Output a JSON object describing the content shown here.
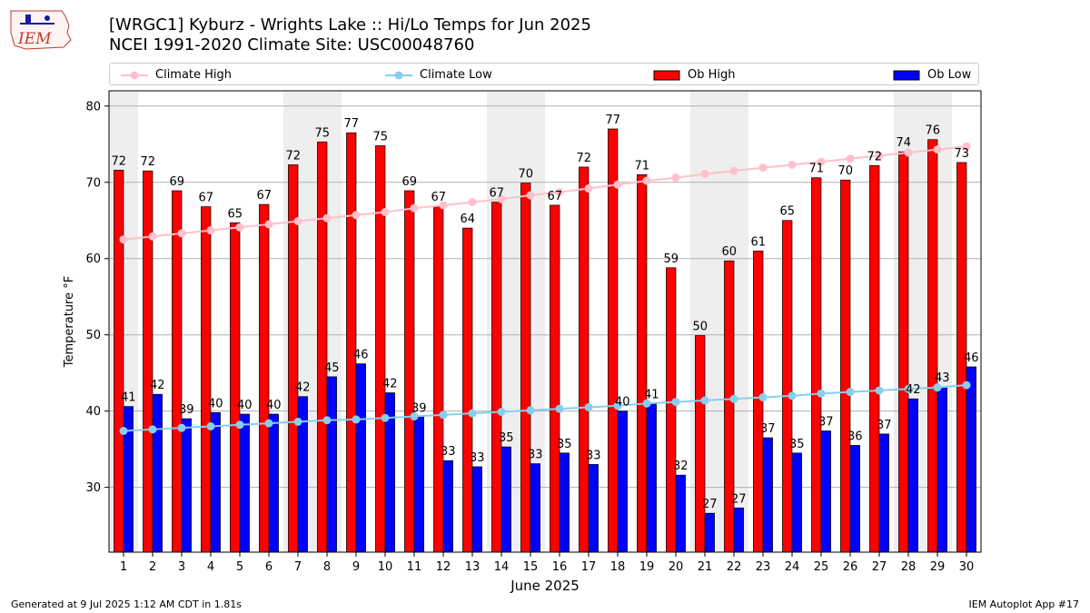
{
  "header": {
    "title": "[WRGC1] Kyburz - Wrights Lake :: Hi/Lo Temps for Jun 2025",
    "subtitle": "NCEI 1991-2020 Climate Site: USC00048760",
    "logo_text": "IEM"
  },
  "legend": {
    "climate_high": "Climate High",
    "climate_low": "Climate Low",
    "ob_high": "Ob High",
    "ob_low": "Ob Low"
  },
  "footer": {
    "left": "Generated at 9 Jul 2025 1:12 AM CDT in 1.81s",
    "right": "IEM Autoplot App #17"
  },
  "colors": {
    "ob_high": "#ff0000",
    "ob_low": "#0000ff",
    "climate_high": "#ffc0cb",
    "climate_low": "#87ceeb",
    "weekend_shade": "#eeeeee",
    "grid": "#b0b0b0"
  },
  "chart_data": {
    "type": "bar",
    "xlabel": "June 2025",
    "ylabel": "Temperature °F",
    "ylim": [
      21.5,
      82
    ],
    "yticks": [
      30,
      40,
      50,
      60,
      70,
      80
    ],
    "grid": "horizontal",
    "legend_position": "top",
    "categories": [
      "1",
      "2",
      "3",
      "4",
      "5",
      "6",
      "7",
      "8",
      "9",
      "10",
      "11",
      "12",
      "13",
      "14",
      "15",
      "16",
      "17",
      "18",
      "19",
      "20",
      "21",
      "22",
      "23",
      "24",
      "25",
      "26",
      "27",
      "28",
      "29",
      "30"
    ],
    "shaded_days": [
      1,
      7,
      8,
      14,
      15,
      21,
      22,
      28,
      29
    ],
    "series": [
      {
        "name": "Ob High",
        "kind": "bar",
        "values": [
          71.6,
          71.5,
          68.9,
          66.8,
          64.7,
          67.1,
          72.3,
          75.3,
          76.5,
          74.8,
          68.9,
          66.9,
          64.0,
          67.4,
          69.9,
          67.0,
          72.0,
          77.0,
          71.0,
          58.8,
          49.9,
          59.7,
          61.0,
          65.0,
          70.6,
          70.3,
          72.2,
          74.0,
          75.6,
          72.6
        ],
        "labels": [
          72,
          72,
          69,
          67,
          65,
          67,
          72,
          75,
          77,
          75,
          69,
          67,
          64,
          67,
          70,
          67,
          72,
          77,
          71,
          59,
          50,
          60,
          61,
          65,
          71,
          70,
          72,
          74,
          76,
          73
        ]
      },
      {
        "name": "Ob Low",
        "kind": "bar",
        "values": [
          40.6,
          42.2,
          39.0,
          39.8,
          39.6,
          39.6,
          41.9,
          44.5,
          46.2,
          42.4,
          39.2,
          33.5,
          32.7,
          35.3,
          33.1,
          34.5,
          33.0,
          40.0,
          41.0,
          31.6,
          26.6,
          27.3,
          36.5,
          34.5,
          37.4,
          35.5,
          37.0,
          41.6,
          43.2,
          45.8
        ],
        "labels": [
          41,
          42,
          39,
          40,
          40,
          40,
          42,
          45,
          46,
          42,
          39,
          33,
          33,
          35,
          33,
          35,
          33,
          40,
          41,
          32,
          27,
          27,
          37,
          35,
          37,
          36,
          37,
          42,
          43,
          46
        ]
      },
      {
        "name": "Climate High",
        "kind": "line",
        "values": [
          62.5,
          62.9,
          63.3,
          63.7,
          64.1,
          64.5,
          64.9,
          65.3,
          65.7,
          66.1,
          66.6,
          67.0,
          67.4,
          67.8,
          68.3,
          68.7,
          69.2,
          69.7,
          70.2,
          70.6,
          71.1,
          71.5,
          71.9,
          72.3,
          72.7,
          73.1,
          73.5,
          73.9,
          74.3,
          74.7
        ]
      },
      {
        "name": "Climate Low",
        "kind": "line",
        "values": [
          37.4,
          37.6,
          37.8,
          38.0,
          38.2,
          38.4,
          38.6,
          38.8,
          38.9,
          39.1,
          39.3,
          39.5,
          39.7,
          39.9,
          40.1,
          40.3,
          40.5,
          40.7,
          41.0,
          41.2,
          41.4,
          41.6,
          41.8,
          42.0,
          42.3,
          42.5,
          42.7,
          42.9,
          43.1,
          43.4
        ]
      }
    ]
  }
}
